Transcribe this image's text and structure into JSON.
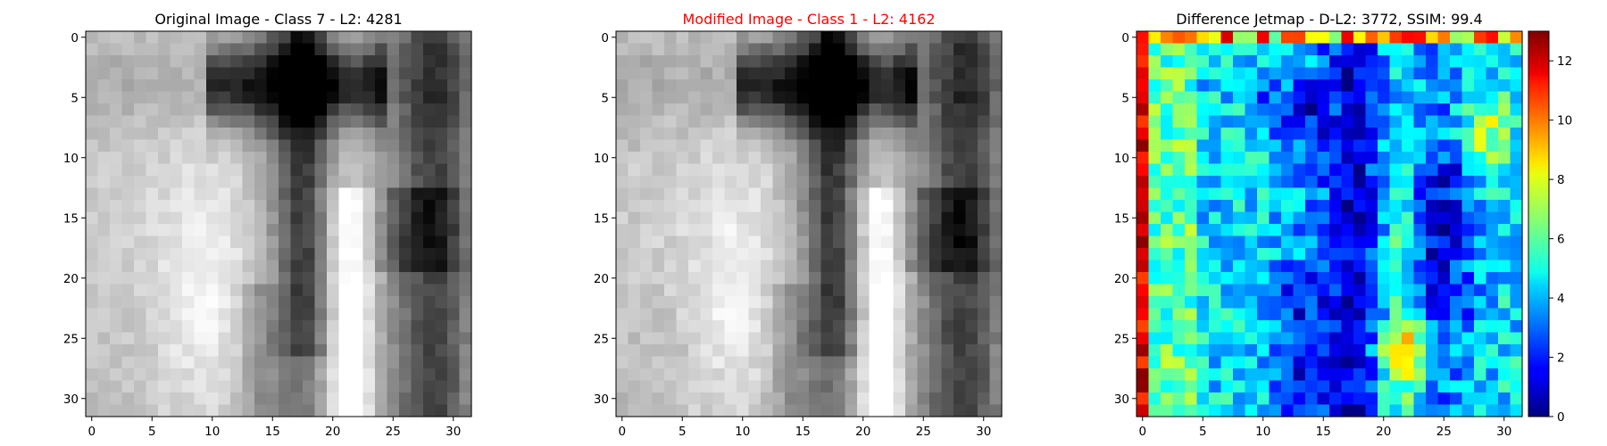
{
  "chart_data": [
    {
      "type": "heatmap",
      "title": "Original Image - Class 7 - L2: 4281",
      "title_color": "#000000",
      "colormap": "gray",
      "x_ticks": [
        "0",
        "5",
        "10",
        "15",
        "20",
        "25",
        "30"
      ],
      "y_ticks": [
        "0",
        "5",
        "10",
        "15",
        "20",
        "25",
        "30"
      ],
      "xlim": [
        -0.5,
        31.5
      ],
      "ylim": [
        31.5,
        -0.5
      ],
      "grid": false
    },
    {
      "type": "heatmap",
      "title": "Modified Image - Class 1 - L2: 4162",
      "title_color": "#ff0000",
      "colormap": "gray",
      "x_ticks": [
        "0",
        "5",
        "10",
        "15",
        "20",
        "25",
        "30"
      ],
      "y_ticks": [
        "0",
        "5",
        "10",
        "15",
        "20",
        "25",
        "30"
      ],
      "xlim": [
        -0.5,
        31.5
      ],
      "ylim": [
        31.5,
        -0.5
      ],
      "grid": false
    },
    {
      "type": "heatmap",
      "title": "Difference Jetmap - D-L2: 3772, SSIM: 99.4",
      "title_color": "#000000",
      "colormap": "jet",
      "x_ticks": [
        "0",
        "5",
        "10",
        "15",
        "20",
        "25",
        "30"
      ],
      "y_ticks": [
        "0",
        "5",
        "10",
        "15",
        "20",
        "25",
        "30"
      ],
      "xlim": [
        -0.5,
        31.5
      ],
      "ylim": [
        31.5,
        -0.5
      ],
      "colorbar_range": [
        0,
        13
      ],
      "colorbar_ticks": [
        "0",
        "2",
        "4",
        "6",
        "8",
        "10",
        "12"
      ],
      "grid": false
    }
  ]
}
